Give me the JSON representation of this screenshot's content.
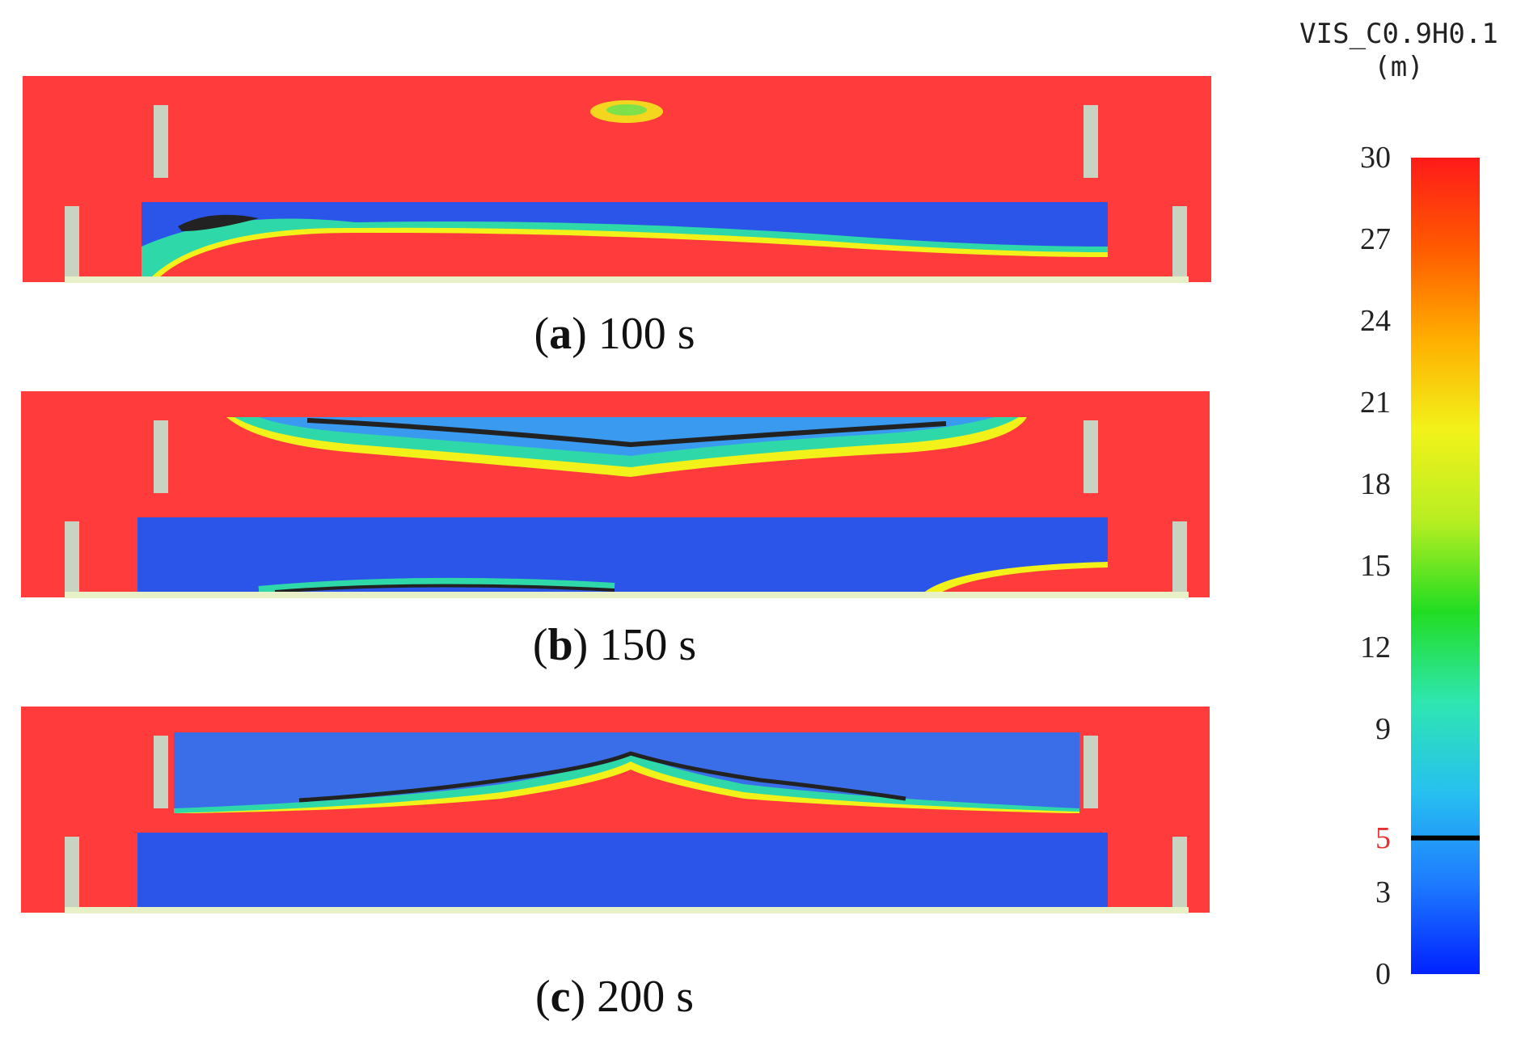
{
  "panels": [
    {
      "id": "a",
      "letter": "a",
      "time": "100 s"
    },
    {
      "id": "b",
      "letter": "b",
      "time": "150 s"
    },
    {
      "id": "c",
      "letter": "c",
      "time": "200 s"
    }
  ],
  "legend": {
    "title_line1": "VIS_C0.9H0.1",
    "title_line2": "(m)",
    "min": 0,
    "max": 30,
    "ticks": [
      "30",
      "27",
      "24",
      "21",
      "18",
      "15",
      "12",
      "9",
      "5",
      "3",
      "0"
    ],
    "tick_values": [
      30,
      27,
      24,
      21,
      18,
      15,
      12,
      9,
      5,
      3,
      0
    ],
    "highlight_value": 5,
    "highlight_color": "#e53030",
    "colors": [
      "#0022ff",
      "#1e7bff",
      "#27c0f0",
      "#2ee6b0",
      "#22dd22",
      "#b8ee22",
      "#f2f21a",
      "#ffae00",
      "#ff5a00",
      "#ff1a1a"
    ]
  },
  "colors": {
    "background": "#ffffff",
    "wall": "#ff3b3b",
    "clear_zone": "#2a55e8",
    "smoke_edge": "#2fd8a8",
    "contour": "#222222"
  }
}
